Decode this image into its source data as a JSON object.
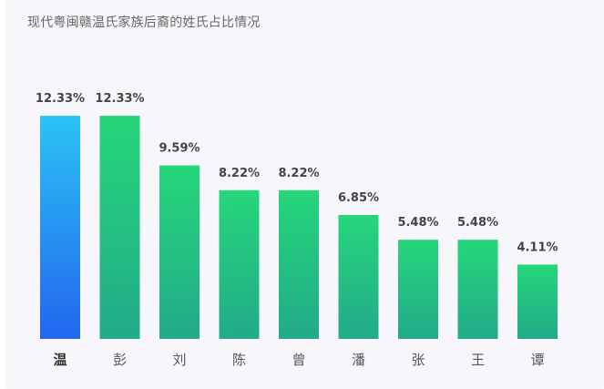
{
  "chart_data": {
    "type": "bar",
    "title": "现代粤闽赣温氏家族后裔的姓氏占比情况",
    "xlabel": "",
    "ylabel": "",
    "categories": [
      "温",
      "彭",
      "刘",
      "陈",
      "曾",
      "潘",
      "张",
      "王",
      "谭"
    ],
    "values": [
      12.33,
      12.33,
      9.59,
      8.22,
      8.22,
      6.85,
      5.48,
      5.48,
      4.11
    ],
    "value_labels": [
      "12.33%",
      "12.33%",
      "9.59%",
      "8.22%",
      "8.22%",
      "6.85%",
      "5.48%",
      "5.48%",
      "4.11%"
    ],
    "ylim": [
      0,
      14.1
    ],
    "grid": false,
    "legend": "none",
    "colors": {
      "highlight_top": "#2cc3f5",
      "highlight_bottom": "#2266ee",
      "bar_top": "#26d67a",
      "bar_bottom": "#22aa8a"
    }
  }
}
